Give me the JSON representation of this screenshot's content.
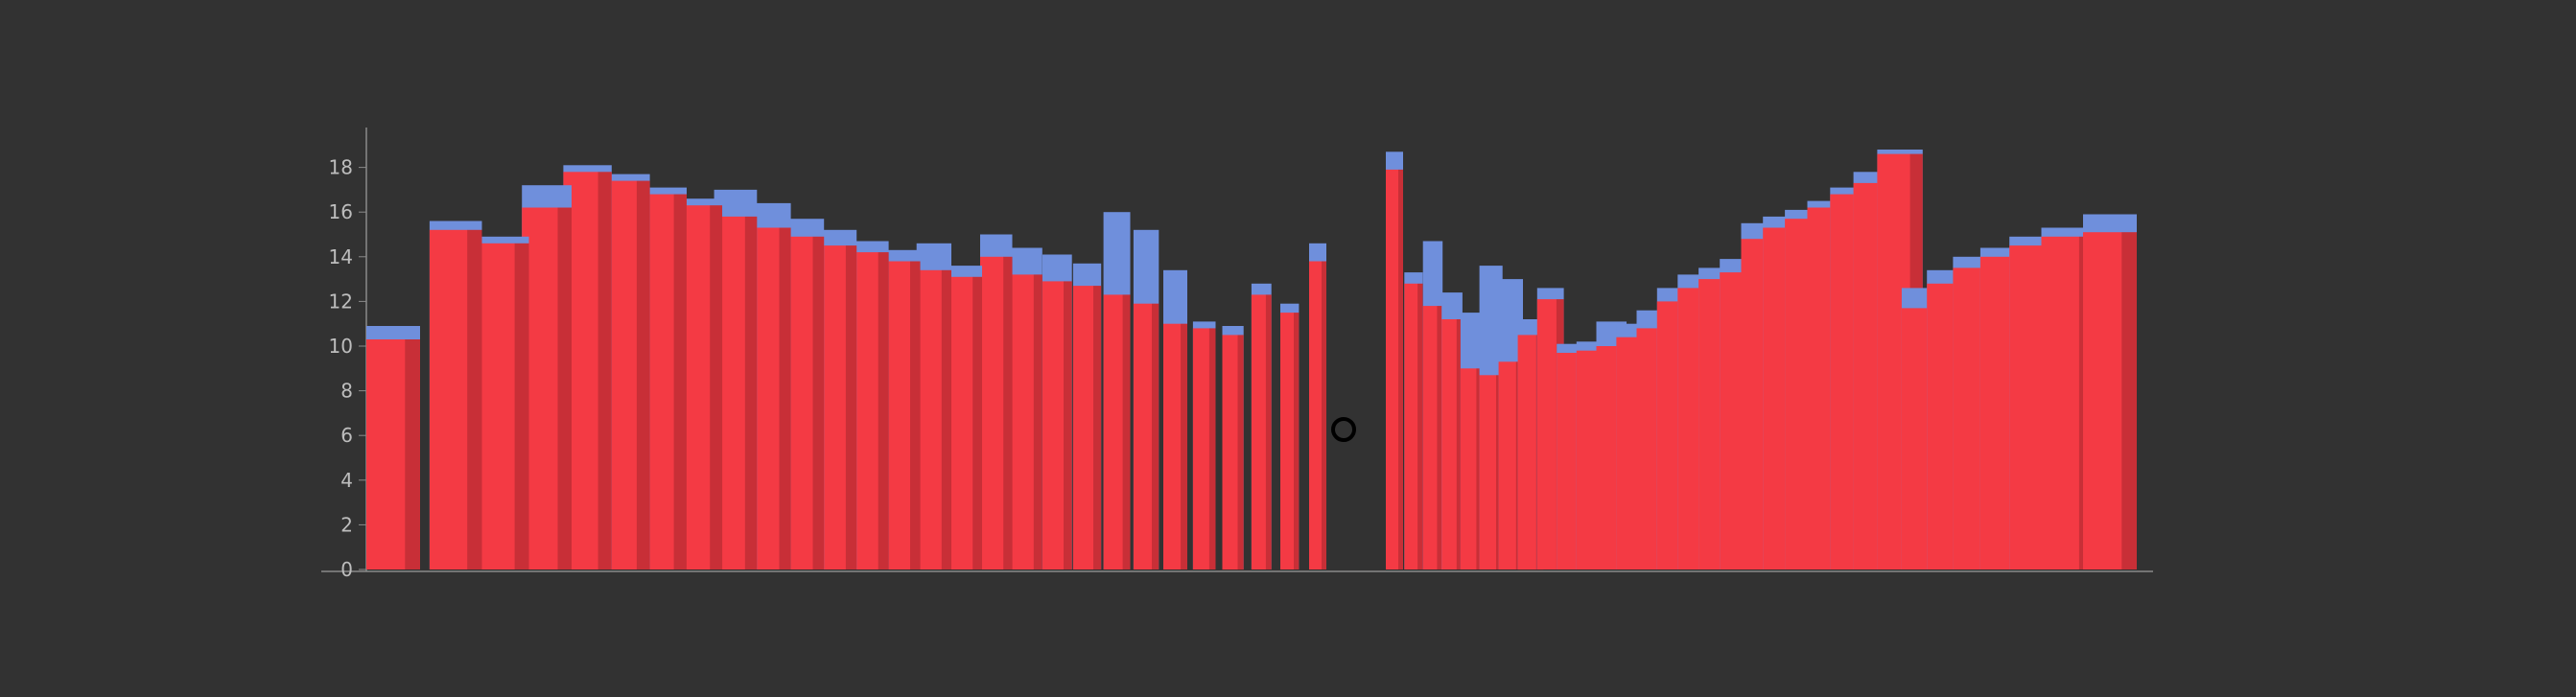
{
  "chart_data": {
    "type": "bar",
    "title": "",
    "xlabel": "",
    "ylabel": "",
    "ylim": [
      0,
      19
    ],
    "yticks": [
      "0",
      "2",
      "4",
      "6",
      "8",
      "10",
      "12",
      "14",
      "16",
      "18"
    ],
    "grid": false,
    "legend": "none",
    "series": [
      {
        "color": "#ff3336",
        "values": [
          10.3,
          15.2,
          14.6,
          16.2,
          17.8,
          17.4,
          16.8,
          16.3,
          15.8,
          15.3,
          14.9,
          14.5,
          14.2,
          13.8,
          13.4,
          13.1,
          14.0,
          13.2,
          12.9,
          12.7,
          12.3,
          11.9,
          11.0,
          10.8,
          10.5,
          12.3,
          11.5,
          13.8,
          17.9,
          12.8,
          11.8,
          11.2,
          9.0,
          8.7,
          9.3,
          10.5,
          12.1,
          9.7,
          9.8,
          10.0,
          10.4,
          10.8,
          12.0,
          12.6,
          13.0,
          13.3,
          14.8,
          15.3,
          15.7,
          16.2,
          16.8,
          17.3,
          18.6,
          11.7,
          12.8,
          13.5,
          14.0,
          14.5,
          14.9,
          15.1
        ]
      },
      {
        "color": "#6f8fdc",
        "values": [
          10.9,
          15.6,
          14.9,
          17.2,
          18.1,
          17.7,
          17.1,
          16.6,
          17.0,
          16.4,
          15.7,
          15.2,
          14.7,
          14.3,
          14.6,
          13.6,
          15.0,
          14.4,
          14.1,
          13.7,
          16.0,
          15.2,
          13.4,
          11.1,
          10.9,
          12.8,
          11.9,
          14.6,
          18.7,
          13.3,
          14.7,
          12.4,
          11.5,
          13.6,
          13.0,
          11.2,
          12.6,
          10.1,
          10.2,
          11.1,
          11.0,
          11.6,
          12.6,
          13.2,
          13.5,
          13.9,
          15.5,
          15.8,
          16.1,
          16.5,
          17.1,
          17.8,
          18.8,
          12.6,
          13.4,
          14.0,
          14.4,
          14.9,
          15.3,
          15.9
        ]
      }
    ]
  }
}
